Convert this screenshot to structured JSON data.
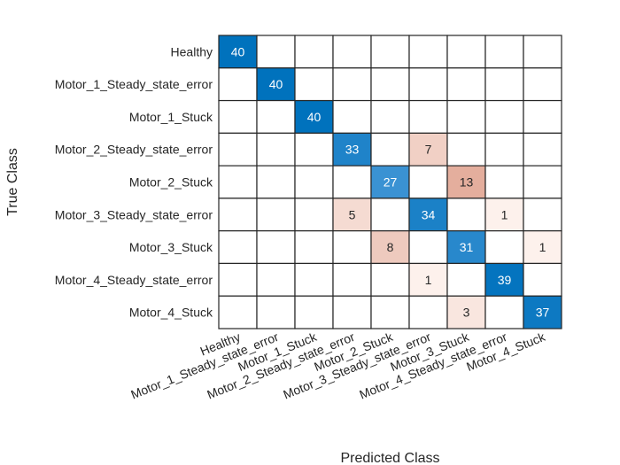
{
  "chart_data": {
    "type": "heatmap",
    "title": "",
    "xlabel": "Predicted Class",
    "ylabel": "True Class",
    "classes": [
      "Healthy",
      "Motor_1_Steady_state_error",
      "Motor_1_Stuck",
      "Motor_2_Steady_state_error",
      "Motor_2_Stuck",
      "Motor_3_Steady_state_error",
      "Motor_3_Stuck",
      "Motor_4_Steady_state_error",
      "Motor_4_Stuck"
    ],
    "matrix": [
      [
        40,
        0,
        0,
        0,
        0,
        0,
        0,
        0,
        0
      ],
      [
        0,
        40,
        0,
        0,
        0,
        0,
        0,
        0,
        0
      ],
      [
        0,
        0,
        40,
        0,
        0,
        0,
        0,
        0,
        0
      ],
      [
        0,
        0,
        0,
        33,
        0,
        7,
        0,
        0,
        0
      ],
      [
        0,
        0,
        0,
        0,
        27,
        0,
        13,
        0,
        0
      ],
      [
        0,
        0,
        0,
        5,
        0,
        34,
        0,
        1,
        0
      ],
      [
        0,
        0,
        0,
        0,
        8,
        0,
        31,
        0,
        1
      ],
      [
        0,
        0,
        0,
        0,
        0,
        1,
        0,
        39,
        0
      ],
      [
        0,
        0,
        0,
        0,
        0,
        0,
        3,
        0,
        37
      ]
    ],
    "colors": {
      "diagonal_max": "#0072BD",
      "diagonal_min": "#3A92D3",
      "offdiag_max": "#E4AE9D",
      "offdiag_min": "#FDF1EC",
      "empty": "#FFFFFF",
      "grid": "#262626"
    }
  }
}
